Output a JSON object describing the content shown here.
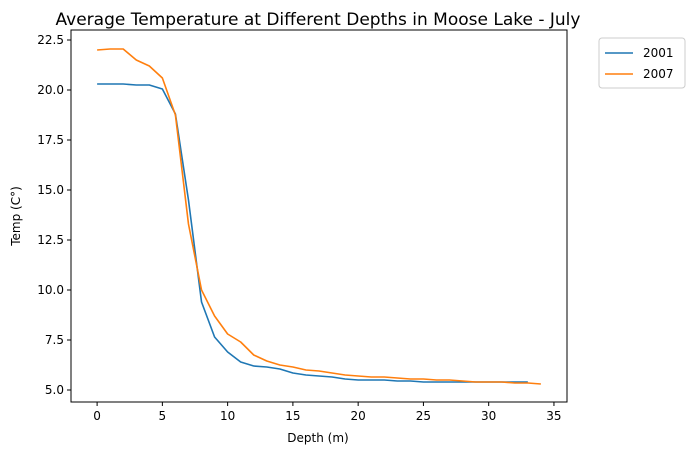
{
  "chart_data": {
    "type": "line",
    "title": "Average Temperature at Different Depths in Moose Lake - July",
    "xlabel": "Depth (m)",
    "ylabel": "Temp (C°)",
    "xlim": [
      -2,
      36
    ],
    "ylim": [
      4.4,
      23.0
    ],
    "xticks": [
      "0",
      "5",
      "10",
      "15",
      "20",
      "25",
      "30",
      "35"
    ],
    "yticks": [
      "5.0",
      "7.5",
      "10.0",
      "12.5",
      "15.0",
      "17.5",
      "20.0",
      "22.5"
    ],
    "grid": false,
    "legend_position": "outside-top-right",
    "series": [
      {
        "name": "2001",
        "color": "#1f77b4",
        "x": [
          0,
          1,
          2,
          3,
          4,
          5,
          6,
          7,
          8,
          9,
          10,
          11,
          12,
          13,
          14,
          15,
          16,
          17,
          18,
          19,
          20,
          21,
          22,
          23,
          24,
          25,
          26,
          27,
          28,
          29,
          30,
          31,
          32,
          33
        ],
        "y": [
          20.3,
          20.3,
          20.3,
          20.25,
          20.25,
          20.05,
          18.8,
          14.5,
          9.4,
          7.65,
          6.9,
          6.4,
          6.2,
          6.15,
          6.05,
          5.85,
          5.75,
          5.7,
          5.65,
          5.55,
          5.5,
          5.5,
          5.5,
          5.45,
          5.45,
          5.4,
          5.4,
          5.4,
          5.4,
          5.4,
          5.4,
          5.4,
          5.4,
          5.4
        ]
      },
      {
        "name": "2007",
        "color": "#ff7f0e",
        "x": [
          0,
          1,
          2,
          3,
          4,
          5,
          6,
          7,
          8,
          9,
          10,
          11,
          12,
          13,
          14,
          15,
          16,
          17,
          18,
          19,
          20,
          21,
          22,
          23,
          24,
          25,
          26,
          27,
          28,
          29,
          30,
          31,
          32,
          33,
          34
        ],
        "y": [
          22.0,
          22.05,
          22.05,
          21.5,
          21.2,
          20.6,
          18.75,
          13.3,
          10.0,
          8.7,
          7.8,
          7.4,
          6.75,
          6.45,
          6.25,
          6.15,
          6.0,
          5.95,
          5.85,
          5.75,
          5.7,
          5.65,
          5.65,
          5.6,
          5.55,
          5.55,
          5.5,
          5.5,
          5.45,
          5.4,
          5.4,
          5.4,
          5.35,
          5.35,
          5.3
        ]
      }
    ]
  }
}
